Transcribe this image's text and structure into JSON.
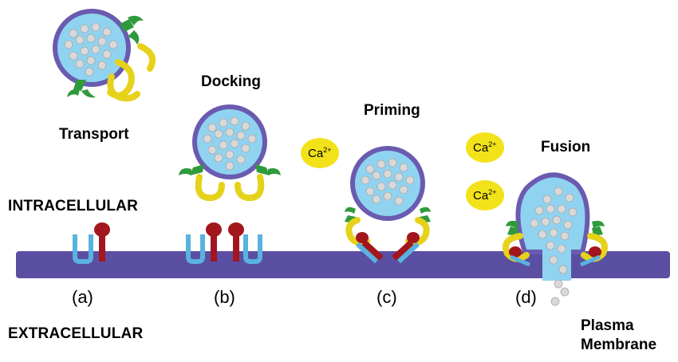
{
  "stages": {
    "transport": "Transport",
    "docking": "Docking",
    "priming": "Priming",
    "fusion": "Fusion"
  },
  "regions": {
    "intracellular": "INTRACELLULAR",
    "extracellular": "EXTRACELLULAR"
  },
  "membrane_label_line1": "Plasma",
  "membrane_label_line2": "Membrane",
  "step_labels": {
    "a": "(a)",
    "b": "(b)",
    "c": "(c)",
    "d": "(d)"
  },
  "calcium": {
    "base": "Ca",
    "charge": "2+"
  },
  "colors": {
    "membrane": "#5b4fa3",
    "vesicle_fill": "#8fd3f0",
    "vesicle_outline": "#6a5bb0",
    "vesicle_granule": "#d9d9d9",
    "snare_green": "#2f9a3c",
    "snare_yellow": "#e6d21a",
    "snare_red": "#a3161d",
    "snare_blue": "#5ab2e0",
    "calcium_fill": "#f2e21a"
  }
}
